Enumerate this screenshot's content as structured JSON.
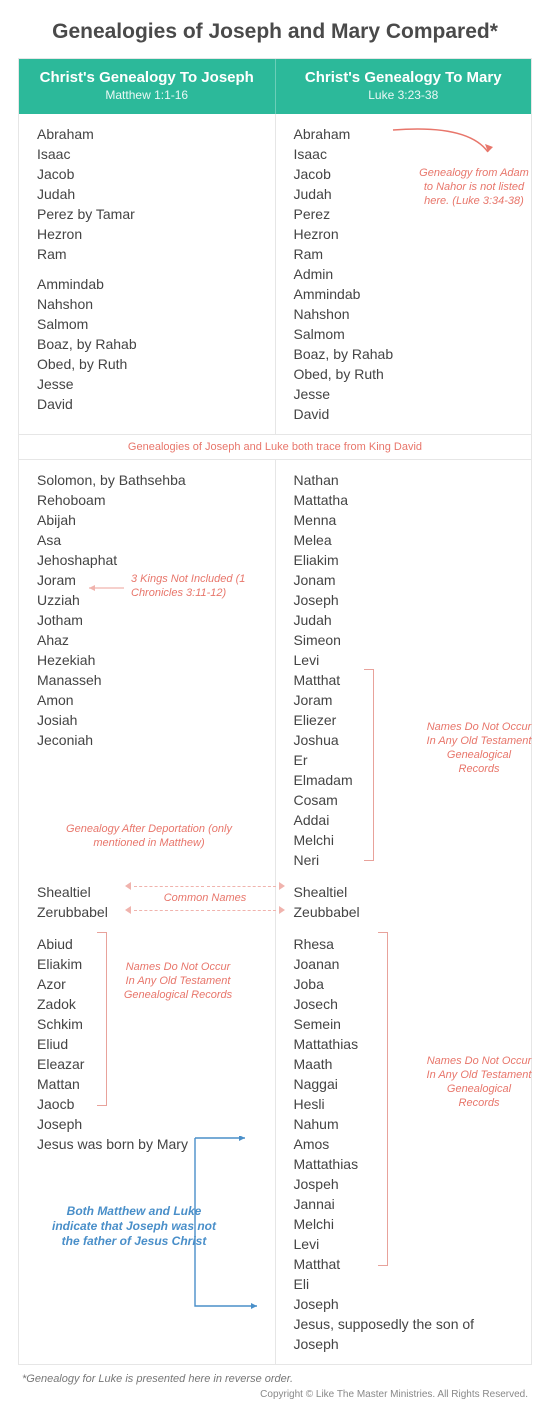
{
  "title": "Genealogies of Joseph and Mary Compared*",
  "colors": {
    "accent": "#2cb99a",
    "note_red": "#e8766b",
    "note_blue": "#4a8fc9"
  },
  "header": {
    "left": {
      "title": "Christ's Genealogy To Joseph",
      "sub": "Matthew 1:1-16"
    },
    "right": {
      "title": "Christ's Genealogy To Mary",
      "sub": "Luke 3:23-38"
    }
  },
  "section1": {
    "left_a": [
      "Abraham",
      "Isaac",
      "Jacob",
      "Judah",
      "Perez by Tamar",
      "Hezron",
      "Ram"
    ],
    "left_b": [
      "Ammindab",
      "Nahshon",
      "Salmom",
      "Boaz, by Rahab",
      "Obed, by Ruth",
      "Jesse",
      "David"
    ],
    "right": [
      "Abraham",
      "Isaac",
      "Jacob",
      "Judah",
      "Perez",
      "Hezron",
      "Ram",
      "Admin",
      "Ammindab",
      "Nahshon",
      "Salmom",
      "Boaz, by Rahab",
      "Obed, by Ruth",
      "Jesse",
      "David"
    ],
    "right_note": "Genealogy from Adam to Nahor is not listed here. (Luke 3:34-38)"
  },
  "divider1": "Genealogies of Joseph and Luke both trace from King David",
  "section2": {
    "left": [
      "Solomon, by Bathsehba",
      "Rehoboam",
      "Abijah",
      "Asa",
      "Jehoshaphat",
      "Joram",
      "Uzziah",
      "Jotham",
      "Ahaz",
      "Hezekiah",
      "Manasseh",
      "Amon",
      "Josiah",
      "Jeconiah"
    ],
    "left_note1": "3 Kings Not Included (1 Chronicles 3:11-12)",
    "left_note2": "Genealogy After Deportation (only mentioned in Matthew)",
    "right": [
      "Nathan",
      "Mattatha",
      "Menna",
      "Melea",
      "Eliakim",
      "Jonam",
      "Joseph",
      "Judah",
      "Simeon",
      "Levi",
      "Matthat",
      "Joram",
      "Eliezer",
      "Joshua",
      "Er",
      "Elmadam",
      "Cosam",
      "Addai",
      "Melchi",
      "Neri"
    ],
    "right_note": "Names Do Not Occur In Any Old Testament Genealogical Records"
  },
  "common": {
    "left": [
      "Shealtiel",
      "Zerubbabel"
    ],
    "right": [
      "Shealtiel",
      "Zeubbabel"
    ],
    "label": "Common Names"
  },
  "section3": {
    "left": [
      "Abiud",
      "Eliakim",
      "Azor",
      "Zadok",
      "Schkim",
      "Eliud",
      "Eleazar",
      "Mattan",
      "Jaocb",
      "Joseph",
      "Jesus was born by Mary"
    ],
    "left_note": "Names Do Not Occur In Any Old Testament Genealogical Records",
    "right": [
      "Rhesa",
      "Joanan",
      "Joba",
      "Josech",
      "Semein",
      "Mattathias",
      "Maath",
      "Naggai",
      "Hesli",
      "Nahum",
      "Amos",
      "Mattathias",
      "Jospeh",
      "Jannai",
      "Melchi",
      "Levi",
      "Matthat",
      "Eli",
      "Joseph",
      "Jesus, supposedly the son of Joseph"
    ],
    "right_note": "Names Do Not Occur In Any Old Testament Genealogical Records",
    "blue_note": "Both Matthew and Luke indicate that Joseph was not the father of Jesus Christ"
  },
  "footnote": "*Genealogy for Luke is presented here in reverse order.",
  "copyright": "Copyright © Like The Master Ministries. All Rights Reserved."
}
